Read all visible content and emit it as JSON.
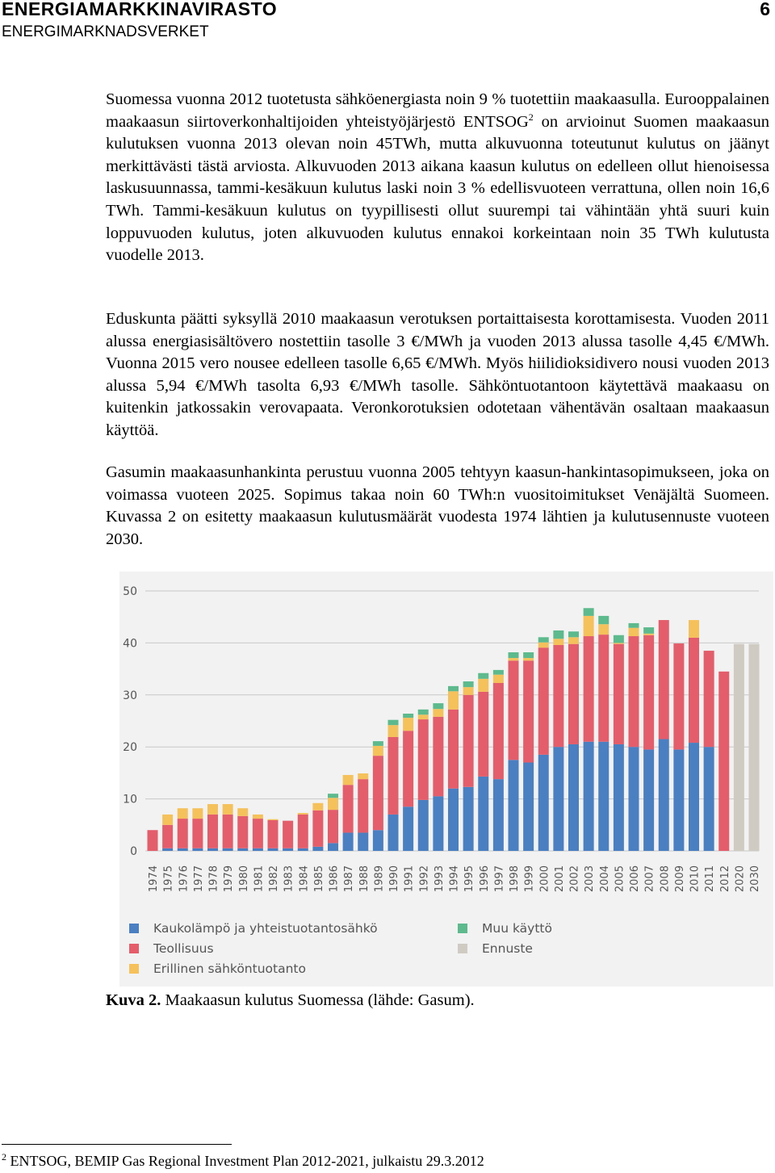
{
  "header": {
    "title": "ENERGIAMARKKINAVIRASTO",
    "page_number": "6",
    "subtitle": "ENERGIMARKNADSVERKET"
  },
  "paragraphs": [
    {
      "before": "Suomessa vuonna 2012 tuotetusta sähköenergiasta noin 9 % tuotettiin maakaasulla. Eurooppalainen maakaasun siirtoverkonhaltijoiden yhteistyöjärjestö ENTSOG",
      "sup": "2",
      "after": " on arvioinut Suomen maakaasun kulutuksen vuonna 2013 olevan noin 45TWh, mutta alkuvuonna toteutunut kulutus on jäänyt merkittävästi tästä arviosta. Alkuvuoden 2013 aikana kaasun kulutus on edelleen ollut hienoisessa laskusuunnassa, tammi-kesäkuun kulutus laski noin 3 % edellisvuoteen verrattuna, ollen noin 16,6 TWh. Tammi-kesäkuun kulutus on tyypillisesti ollut suurempi tai vähintään yhtä suuri kuin loppuvuoden kulutus, joten alkuvuoden kulutus ennakoi korkeintaan noin 35 TWh kulutusta vuodelle 2013."
    },
    {
      "text": "Eduskunta päätti syksyllä 2010 maakaasun verotuksen portaittaisesta korottamisesta. Vuoden 2011 alussa energiasisältövero nostettiin tasolle 3 €/MWh ja vuoden 2013 alussa tasolle 4,45 €/MWh. Vuonna 2015 vero nousee edelleen tasolle 6,65 €/MWh. Myös hiilidioksidivero nousi vuoden 2013 alussa 5,94 €/MWh tasolta 6,93 €/MWh tasolle. Sähköntuotantoon käytettävä maakaasu on kuitenkin jatkossakin verovapaata. Veronkorotuksien odotetaan vähentävän osaltaan maakaasun käyttöä."
    },
    {
      "text": "Gasumin maakaasunhankinta perustuu vuonna 2005 tehtyyn kaasun-hankintasopimukseen, joka on voimassa vuoteen 2025. Sopimus takaa noin 60 TWh:n vuositoimitukset Venäjältä Suomeen. Kuvassa 2 on esitetty maakaasun kulutusmäärät vuodesta 1974 lähtien ja kulutusennuste vuoteen 2030."
    }
  ],
  "chart_data": {
    "type": "stacked-bar",
    "categories": [
      "1974",
      "1975",
      "1976",
      "1977",
      "1978",
      "1979",
      "1980",
      "1981",
      "1982",
      "1983",
      "1984",
      "1985",
      "1986",
      "1987",
      "1988",
      "1989",
      "1990",
      "1991",
      "1992",
      "1993",
      "1994",
      "1995",
      "1996",
      "1997",
      "1998",
      "1999",
      "2000",
      "2001",
      "2002",
      "2003",
      "2004",
      "2005",
      "2006",
      "2007",
      "2008",
      "2009",
      "2010",
      "2011",
      "2012",
      "2020",
      "2030"
    ],
    "ylim": [
      0,
      50
    ],
    "yticks": [
      0,
      10,
      20,
      30,
      40,
      50
    ],
    "grid": true,
    "series": [
      {
        "name": "Kaukolämpö ja yhteistuotantosähkö",
        "color": "#4a7fc1",
        "values": [
          null,
          0.5,
          0.5,
          0.5,
          0.5,
          0.5,
          0.5,
          0.5,
          0.5,
          0.5,
          0.5,
          0.8,
          1.5,
          3.5,
          3.5,
          4.0,
          7.0,
          8.5,
          9.8,
          10.5,
          12.0,
          12.3,
          14.3,
          13.8,
          17.5,
          17.0,
          18.5,
          20.0,
          20.5,
          21.0,
          21.0,
          20.5,
          20.0,
          19.5,
          21.5,
          19.5,
          20.8,
          20.0,
          null,
          null,
          null
        ]
      },
      {
        "name": "Teollisuus",
        "color": "#e35d6a",
        "values": [
          4.0,
          4.5,
          5.7,
          5.7,
          6.5,
          6.5,
          6.2,
          5.7,
          5.4,
          5.3,
          6.5,
          7.0,
          6.4,
          9.2,
          10.3,
          14.3,
          14.9,
          14.6,
          15.5,
          15.3,
          15.2,
          17.7,
          16.3,
          18.5,
          19.1,
          19.6,
          20.6,
          19.6,
          19.3,
          20.3,
          20.6,
          19.3,
          21.3,
          22.0,
          22.9,
          20.4,
          20.2,
          18.5,
          34.5,
          null,
          null
        ]
      },
      {
        "name": "Erillinen sähköntuotanto",
        "color": "#f5c15a",
        "values": [
          null,
          2.0,
          2.0,
          2.0,
          2.0,
          2.0,
          1.5,
          0.8,
          0.2,
          null,
          0.3,
          1.4,
          2.3,
          1.9,
          1.1,
          1.9,
          2.3,
          2.5,
          0.9,
          1.5,
          3.5,
          1.5,
          2.5,
          1.6,
          0.5,
          0.5,
          1.0,
          1.2,
          1.3,
          3.9,
          2.0,
          0.2,
          1.6,
          0.3,
          null,
          null,
          3.4,
          null,
          null,
          null,
          null
        ]
      },
      {
        "name": "Muu käyttö",
        "color": "#5cba8c",
        "values": [
          null,
          null,
          null,
          null,
          null,
          null,
          null,
          null,
          null,
          null,
          null,
          null,
          0.8,
          null,
          null,
          0.9,
          1.0,
          0.8,
          1.0,
          1.1,
          1.0,
          1.1,
          1.1,
          0.9,
          1.1,
          1.1,
          1.0,
          1.6,
          1.1,
          1.5,
          1.6,
          1.5,
          0.9,
          1.2,
          null,
          null,
          null,
          null,
          null,
          null,
          null
        ]
      },
      {
        "name": "Ennuste",
        "color": "#cfcac2",
        "values": [
          null,
          null,
          null,
          null,
          null,
          null,
          null,
          null,
          null,
          null,
          null,
          null,
          null,
          null,
          null,
          null,
          null,
          null,
          null,
          null,
          null,
          null,
          null,
          null,
          null,
          null,
          null,
          null,
          null,
          null,
          null,
          null,
          null,
          null,
          null,
          null,
          null,
          null,
          null,
          39.8,
          39.8
        ]
      }
    ]
  },
  "caption": {
    "label": "Kuva 2.",
    "text": "Maakaasun kulutus Suomessa (lähde: Gasum)."
  },
  "footnote": {
    "marker": "2",
    "text": "ENTSOG, BEMIP Gas Regional Investment Plan 2012-2021, julkaistu 29.3.2012"
  }
}
